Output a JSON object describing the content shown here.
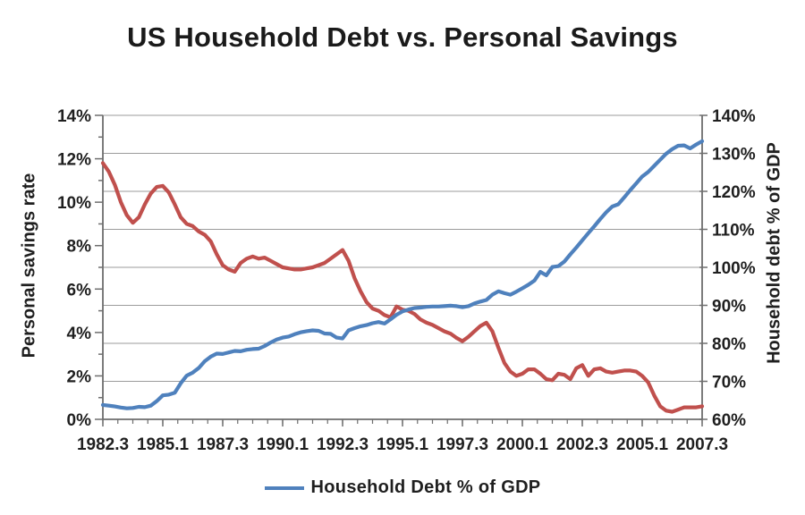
{
  "colors": {
    "text": "#1f1f1f",
    "grid": "#9b9b9b",
    "axis": "#6e6e6e",
    "background": "#ffffff"
  },
  "legend": {
    "label": "Household Debt % of GDP"
  },
  "chart_data": {
    "type": "line",
    "title": "US Household Debt vs. Personal Savings",
    "x_frequency": "quarterly",
    "x_start": "1982 Q3",
    "x_end": "2007 Q3",
    "x_tick_labels": [
      "1982.3",
      "1985.1",
      "1987.3",
      "1990.1",
      "1992.3",
      "1995.1",
      "1997.3",
      "2000.1",
      "2002.3",
      "2005.1",
      "2007.3"
    ],
    "grid": true,
    "legend_position": "bottom",
    "left_axis": {
      "title": "Personal savings rate",
      "min": 0,
      "max": 14,
      "tick_step": 2,
      "tick_labels": [
        "0%",
        "2%",
        "4%",
        "6%",
        "8%",
        "10%",
        "12%",
        "14%"
      ]
    },
    "right_axis": {
      "title": "Household debt % of GDP",
      "min": 60,
      "max": 140,
      "tick_step": 10,
      "tick_labels": [
        "60%",
        "70%",
        "80%",
        "90%",
        "100%",
        "110%",
        "120%",
        "130%",
        "140%"
      ]
    },
    "series": [
      {
        "name": "Personal savings rate",
        "axis": "left",
        "color": "#C0504D",
        "values": [
          11.8,
          11.4,
          10.8,
          10.0,
          9.4,
          9.05,
          9.3,
          9.9,
          10.4,
          10.7,
          10.75,
          10.45,
          9.9,
          9.3,
          9.0,
          8.9,
          8.65,
          8.5,
          8.2,
          7.6,
          7.1,
          6.9,
          6.8,
          7.2,
          7.4,
          7.5,
          7.4,
          7.45,
          7.3,
          7.15,
          7.0,
          6.95,
          6.9,
          6.9,
          6.95,
          7.0,
          7.1,
          7.2,
          7.4,
          7.6,
          7.8,
          7.3,
          6.5,
          5.9,
          5.4,
          5.1,
          5.0,
          4.8,
          4.7,
          5.2,
          5.05,
          5.0,
          4.85,
          4.6,
          4.45,
          4.35,
          4.2,
          4.05,
          3.95,
          3.75,
          3.6,
          3.8,
          4.05,
          4.3,
          4.45,
          4.05,
          3.3,
          2.6,
          2.2,
          2.0,
          2.1,
          2.3,
          2.3,
          2.1,
          1.85,
          1.8,
          2.1,
          2.05,
          1.85,
          2.35,
          2.5,
          2.0,
          2.3,
          2.35,
          2.2,
          2.15,
          2.2,
          2.25,
          2.25,
          2.2,
          2.0,
          1.7,
          1.1,
          0.6,
          0.4,
          0.35,
          0.45,
          0.55,
          0.55,
          0.55,
          0.6
        ]
      },
      {
        "name": "Household Debt % of GDP",
        "axis": "right",
        "color": "#4F81BD",
        "values": [
          63.8,
          63.6,
          63.4,
          63.1,
          62.9,
          63.0,
          63.3,
          63.2,
          63.6,
          64.8,
          66.3,
          66.5,
          67.0,
          69.5,
          71.5,
          72.3,
          73.5,
          75.3,
          76.5,
          77.3,
          77.2,
          77.6,
          78.0,
          77.9,
          78.3,
          78.5,
          78.6,
          79.3,
          80.2,
          81.0,
          81.5,
          81.8,
          82.4,
          82.9,
          83.2,
          83.4,
          83.3,
          82.6,
          82.5,
          81.5,
          81.3,
          83.4,
          84.0,
          84.5,
          84.8,
          85.3,
          85.6,
          85.2,
          86.3,
          87.5,
          88.4,
          88.9,
          89.3,
          89.4,
          89.6,
          89.7,
          89.7,
          89.8,
          89.9,
          89.8,
          89.5,
          89.8,
          90.5,
          91.0,
          91.4,
          92.8,
          93.7,
          93.2,
          92.8,
          93.6,
          94.5,
          95.4,
          96.5,
          98.8,
          97.9,
          100.1,
          100.3,
          101.5,
          103.4,
          105.2,
          107.1,
          109.0,
          110.8,
          112.7,
          114.5,
          116.0,
          116.6,
          118.4,
          120.3,
          122.1,
          123.9,
          125.1,
          126.7,
          128.3,
          129.9,
          131.1,
          132.0,
          132.1,
          131.3,
          132.3,
          133.2
        ]
      }
    ]
  }
}
